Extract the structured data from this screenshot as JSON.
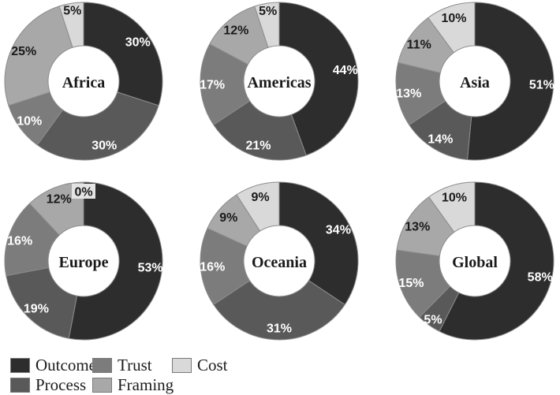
{
  "chart_style": {
    "palette": {
      "Outcome": "#2d2d2d",
      "Process": "#595959",
      "Trust": "#7c7c7c",
      "Framing": "#a8a8a8",
      "Cost": "#d9d9d9"
    },
    "slice_border_color": "#8c8c8c",
    "label_text_on_dark": "#ffffff",
    "label_text_on_light": "#1a1a1a",
    "zero_label_bg": "#e4e4e4"
  },
  "legend": {
    "position": "bottom-left",
    "items": [
      {
        "label": "Outcome",
        "color": "#2d2d2d",
        "row": 1,
        "col": 1
      },
      {
        "label": "Process",
        "color": "#595959",
        "row": 2,
        "col": 1
      },
      {
        "label": "Trust",
        "color": "#7c7c7c",
        "row": 1,
        "col": 2
      },
      {
        "label": "Framing",
        "color": "#a8a8a8",
        "row": 2,
        "col": 2
      },
      {
        "label": "Cost",
        "color": "#d9d9d9",
        "row": 1,
        "col": 3
      }
    ]
  },
  "chart_data": [
    {
      "type": "donut",
      "title": "Africa",
      "categories": [
        "Outcome",
        "Process",
        "Trust",
        "Framing",
        "Cost"
      ],
      "values": [
        30,
        30,
        10,
        25,
        5
      ],
      "value_labels": [
        "30%",
        "30%",
        "10%",
        "25%",
        "5%"
      ],
      "start_angle": "top",
      "direction": "clockwise"
    },
    {
      "type": "donut",
      "title": "Americas",
      "categories": [
        "Outcome",
        "Process",
        "Trust",
        "Framing",
        "Cost"
      ],
      "values": [
        44,
        21,
        17,
        12,
        5
      ],
      "value_labels": [
        "44%",
        "21%",
        "17%",
        "12%",
        "5%"
      ],
      "start_angle": "top",
      "direction": "clockwise"
    },
    {
      "type": "donut",
      "title": "Asia",
      "categories": [
        "Outcome",
        "Process",
        "Trust",
        "Framing",
        "Cost"
      ],
      "values": [
        51,
        14,
        13,
        11,
        10
      ],
      "value_labels": [
        "51%",
        "14%",
        "13%",
        "11%",
        "10%"
      ],
      "start_angle": "top",
      "direction": "clockwise"
    },
    {
      "type": "donut",
      "title": "Europe",
      "categories": [
        "Outcome",
        "Process",
        "Trust",
        "Framing",
        "Cost"
      ],
      "values": [
        53,
        19,
        16,
        12,
        0
      ],
      "value_labels": [
        "53%",
        "19%",
        "16%",
        "12%",
        "0%"
      ],
      "start_angle": "top",
      "direction": "clockwise"
    },
    {
      "type": "donut",
      "title": "Oceania",
      "categories": [
        "Outcome",
        "Process",
        "Trust",
        "Framing",
        "Cost"
      ],
      "values": [
        34,
        31,
        16,
        9,
        9
      ],
      "value_labels": [
        "34%",
        "31%",
        "16%",
        "9%",
        "9%"
      ],
      "start_angle": "top",
      "direction": "clockwise"
    },
    {
      "type": "donut",
      "title": "Global",
      "categories": [
        "Outcome",
        "Process",
        "Trust",
        "Framing",
        "Cost"
      ],
      "values": [
        58,
        5,
        15,
        13,
        10
      ],
      "value_labels": [
        "58%",
        "5%",
        "15%",
        "13%",
        "10%"
      ],
      "start_angle": "top",
      "direction": "clockwise"
    }
  ]
}
